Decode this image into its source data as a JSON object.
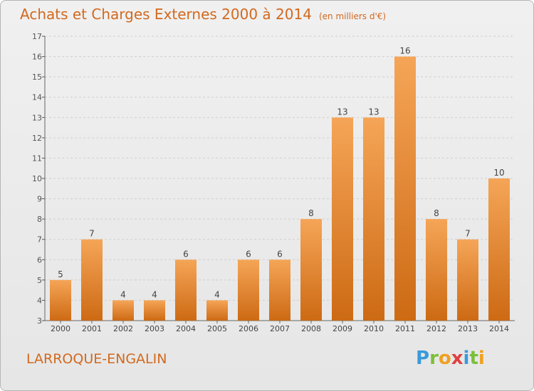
{
  "title": "Achats et Charges Externes 2000 à 2014",
  "subtitle": "(en milliers d'€)",
  "commune": "LARROQUE-ENGALIN",
  "logo": [
    "P",
    "r",
    "o",
    "x",
    "i",
    "t",
    "i"
  ],
  "colors": {
    "bar_top": "#f5a557",
    "bar_bottom": "#cd6a14",
    "accent": "#d2691e"
  },
  "chart_data": {
    "type": "bar",
    "title": "Achats et Charges Externes 2000 à 2014",
    "subtitle": "(en milliers d'€)",
    "categories": [
      "2000",
      "2001",
      "2002",
      "2003",
      "2004",
      "2005",
      "2006",
      "2007",
      "2008",
      "2009",
      "2010",
      "2011",
      "2012",
      "2013",
      "2014"
    ],
    "values": [
      5,
      7,
      4,
      4,
      6,
      4,
      6,
      6,
      8,
      13,
      13,
      16,
      8,
      7,
      10
    ],
    "ylim": [
      3,
      17
    ],
    "yticks": [
      3,
      4,
      5,
      6,
      7,
      8,
      9,
      10,
      11,
      12,
      13,
      14,
      15,
      16,
      17
    ],
    "grid": true
  }
}
